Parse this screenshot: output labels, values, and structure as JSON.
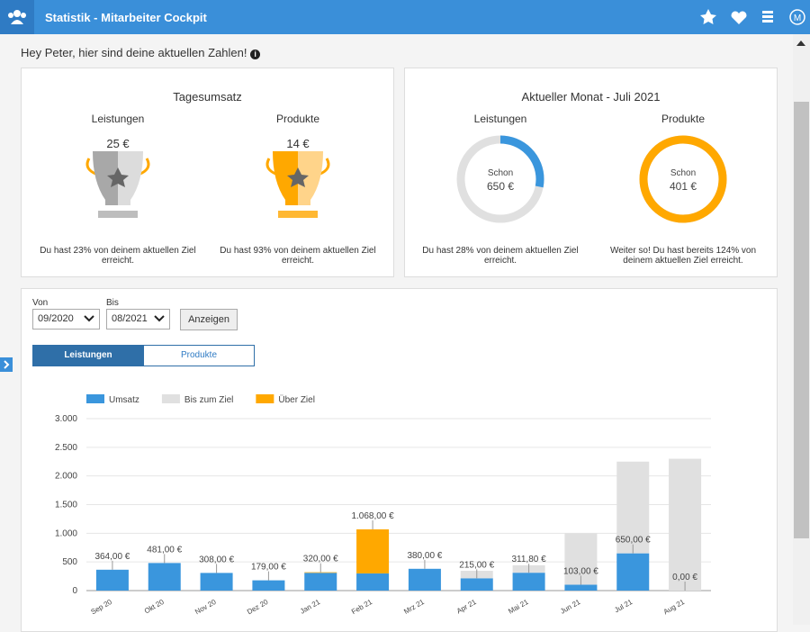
{
  "header": {
    "title": "Statistik - Mitarbeiter Cockpit",
    "avatar": "M"
  },
  "greeting": "Hey Peter, hier sind deine aktuellen Zahlen!",
  "daily": {
    "title": "Tagesumsatz",
    "items": [
      {
        "label": "Leistungen",
        "amount": "25 €",
        "text": "Du hast 23% von deinem aktuellen Ziel erreicht."
      },
      {
        "label": "Produkte",
        "amount": "14 €",
        "text": "Du hast 93% von deinem aktuellen Ziel erreicht."
      }
    ]
  },
  "monthly": {
    "title": "Aktueller Monat - Juli 2021",
    "items": [
      {
        "label": "Leistungen",
        "caption": "Schon",
        "amount": "650 €",
        "progress": 28,
        "color": "#3a96dd",
        "track": "#e0e0e0",
        "text": "Du hast 28% von deinem aktuellen Ziel erreicht."
      },
      {
        "label": "Produkte",
        "caption": "Schon",
        "amount": "401 €",
        "progress": 124,
        "color": "#ffa800",
        "track": "#e0e0e0",
        "text": "Weiter so! Du hast bereits 124% von deinem aktuellen Ziel erreicht."
      }
    ]
  },
  "filter": {
    "from_label": "Von",
    "from": "09/2020",
    "to_label": "Bis",
    "to": "08/2021",
    "button": "Anzeigen"
  },
  "tabs": [
    "Leistungen",
    "Produkte"
  ],
  "chart_data": {
    "type": "bar",
    "stacked": true,
    "categories": [
      "Sep 20",
      "Okt 20",
      "Nov 20",
      "Dez 20",
      "Jan 21",
      "Feb 21",
      "Mrz 21",
      "Apr 21",
      "Mai 21",
      "Jun 21",
      "Jul 21",
      "Aug 21"
    ],
    "series": [
      {
        "name": "Umsatz",
        "color": "#3a96dd",
        "values": [
          364,
          481,
          308,
          179,
          310,
          300,
          380,
          215,
          311.8,
          103,
          650,
          0
        ]
      },
      {
        "name": "Bis zum Ziel",
        "color": "#e0e0e0",
        "values": [
          0,
          0,
          0,
          0,
          0,
          0,
          0,
          130,
          130,
          897,
          1600,
          2300
        ]
      },
      {
        "name": "Über Ziel",
        "color": "#ffa800",
        "values": [
          0,
          0,
          0,
          0,
          10,
          768,
          0,
          0,
          0,
          0,
          0,
          0
        ]
      }
    ],
    "annotations": [
      "364,00 €",
      "481,00 €",
      "308,00 €",
      "179,00 €",
      "320,00 €",
      "1.068,00 €",
      "380,00 €",
      "215,00 €",
      "311,80 €",
      "103,00 €",
      "650,00 €",
      "0,00 €"
    ],
    "ylim": [
      0,
      3000
    ],
    "yticks": [
      0,
      500,
      {
        "value": 1000,
        "label": "1.000"
      },
      {
        "value": 1500,
        "label": "1.500"
      },
      {
        "value": 2000,
        "label": "2.000"
      },
      {
        "value": 2500,
        "label": "2.500"
      },
      {
        "value": 3000,
        "label": "3.000"
      }
    ],
    "grid": true
  }
}
